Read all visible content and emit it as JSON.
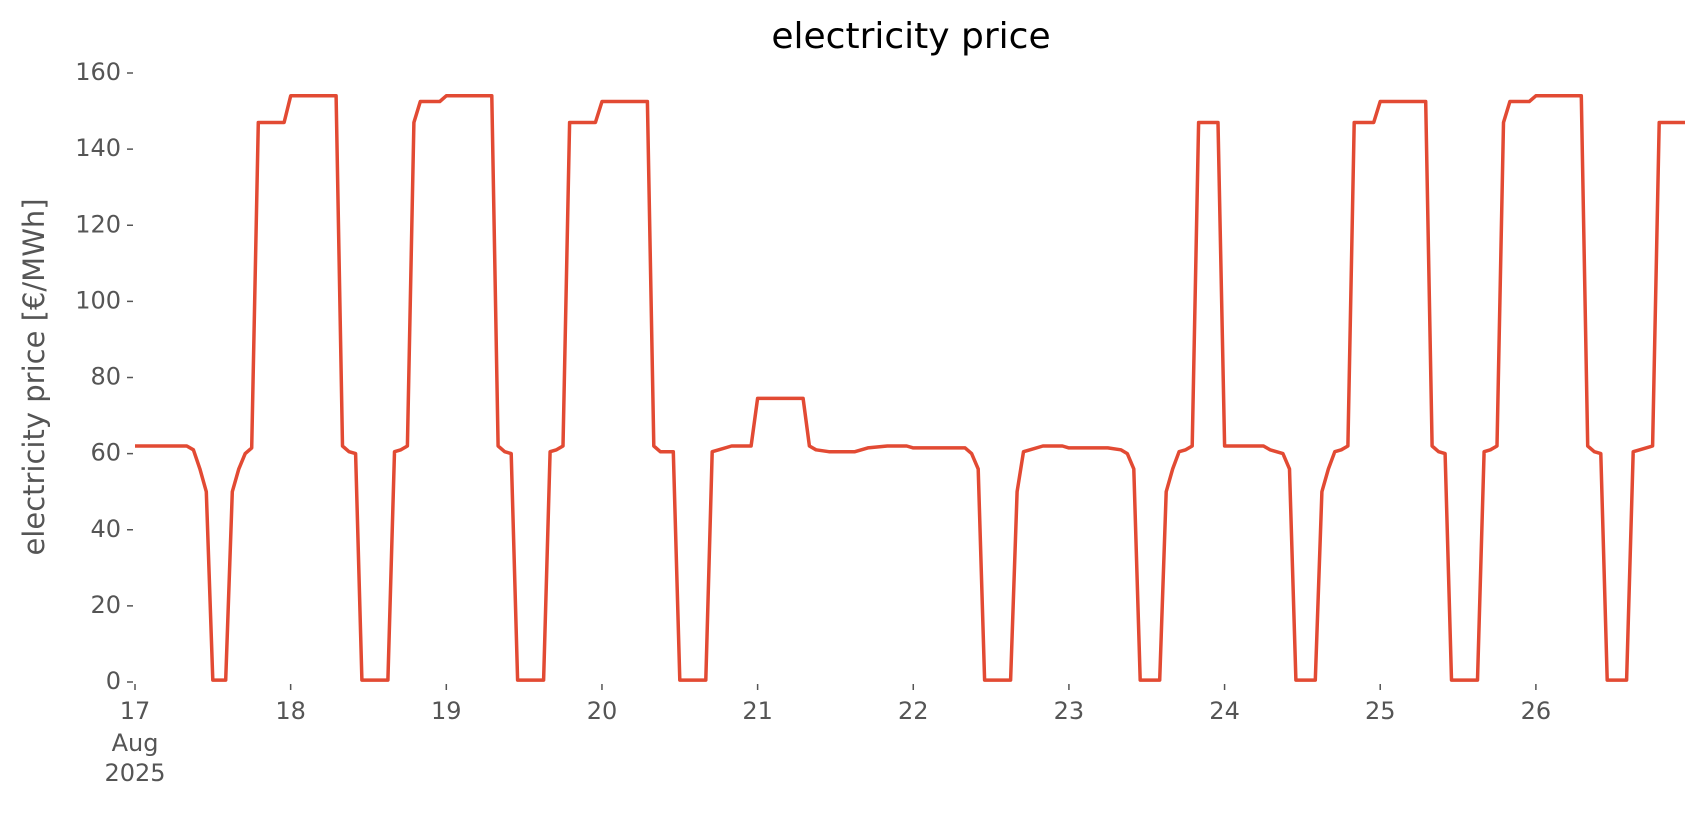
{
  "chart_data": {
    "type": "line",
    "title": "electricity price",
    "ylabel": "electricity price [€/MWh]",
    "x": [
      17,
      17.333,
      17.375,
      17.417,
      17.458,
      17.5,
      17.583,
      17.625,
      17.667,
      17.708,
      17.75,
      17.792,
      17.958,
      18,
      18.292,
      18.333,
      18.375,
      18.417,
      18.458,
      18.625,
      18.667,
      18.708,
      18.75,
      18.792,
      18.833,
      18.958,
      19,
      19.292,
      19.333,
      19.375,
      19.417,
      19.458,
      19.625,
      19.667,
      19.708,
      19.75,
      19.792,
      19.958,
      20,
      20.292,
      20.333,
      20.375,
      20.458,
      20.5,
      20.667,
      20.708,
      20.75,
      20.833,
      20.958,
      21,
      21.292,
      21.333,
      21.375,
      21.458,
      21.625,
      21.708,
      21.833,
      21.958,
      22,
      22.333,
      22.375,
      22.417,
      22.458,
      22.625,
      22.667,
      22.708,
      22.75,
      22.833,
      22.958,
      23,
      23.25,
      23.333,
      23.375,
      23.417,
      23.458,
      23.583,
      23.625,
      23.667,
      23.708,
      23.75,
      23.792,
      23.833,
      23.958,
      24,
      24.25,
      24.292,
      24.375,
      24.417,
      24.458,
      24.583,
      24.625,
      24.667,
      24.708,
      24.75,
      24.792,
      24.833,
      24.958,
      25,
      25.292,
      25.333,
      25.375,
      25.417,
      25.458,
      25.625,
      25.667,
      25.708,
      25.75,
      25.792,
      25.833,
      25.958,
      26,
      26.292,
      26.333,
      26.375,
      26.417,
      26.458,
      26.583,
      26.625,
      26.667,
      26.75,
      26.792,
      26.958
    ],
    "series": [
      {
        "name": "electricity price",
        "color": "#e24a33",
        "values": [
          62,
          62,
          61,
          56,
          50,
          0.5,
          0.5,
          50,
          56,
          60,
          61.5,
          147,
          147,
          154,
          154,
          62,
          60.5,
          60,
          0.5,
          0.5,
          60.5,
          61,
          62,
          147,
          152.5,
          152.5,
          154,
          154,
          62,
          60.5,
          60,
          0.5,
          0.5,
          60.5,
          61,
          62,
          147,
          147,
          152.5,
          152.5,
          62,
          60.5,
          60.5,
          0.5,
          0.5,
          60.5,
          61,
          62,
          62,
          74.5,
          74.5,
          62,
          61,
          60.5,
          60.5,
          61.5,
          62,
          62,
          61.5,
          61.5,
          60,
          56,
          0.5,
          0.5,
          50,
          60.5,
          61,
          62,
          62,
          61.5,
          61.5,
          61,
          60,
          56,
          0.5,
          0.5,
          50,
          56,
          60.5,
          61,
          62,
          147,
          147,
          62,
          62,
          61,
          60,
          56,
          0.5,
          0.5,
          50,
          56,
          60.5,
          61,
          62,
          147,
          147,
          152.5,
          152.5,
          62,
          60.5,
          60,
          0.5,
          0.5,
          60.5,
          61,
          62,
          147,
          152.5,
          152.5,
          154,
          154,
          62,
          60.5,
          60,
          0.5,
          0.5,
          60.5,
          61,
          62,
          147,
          147
        ]
      }
    ],
    "xlim": [
      17,
      26.958
    ],
    "xticks": [
      17,
      18,
      19,
      20,
      21,
      22,
      23,
      24,
      25,
      26
    ],
    "xtick_sublabels": [
      "Aug",
      "2025"
    ],
    "ylim": [
      0,
      160
    ],
    "yticks": [
      0,
      20,
      40,
      60,
      80,
      100,
      120,
      140,
      160
    ],
    "grid": false
  }
}
